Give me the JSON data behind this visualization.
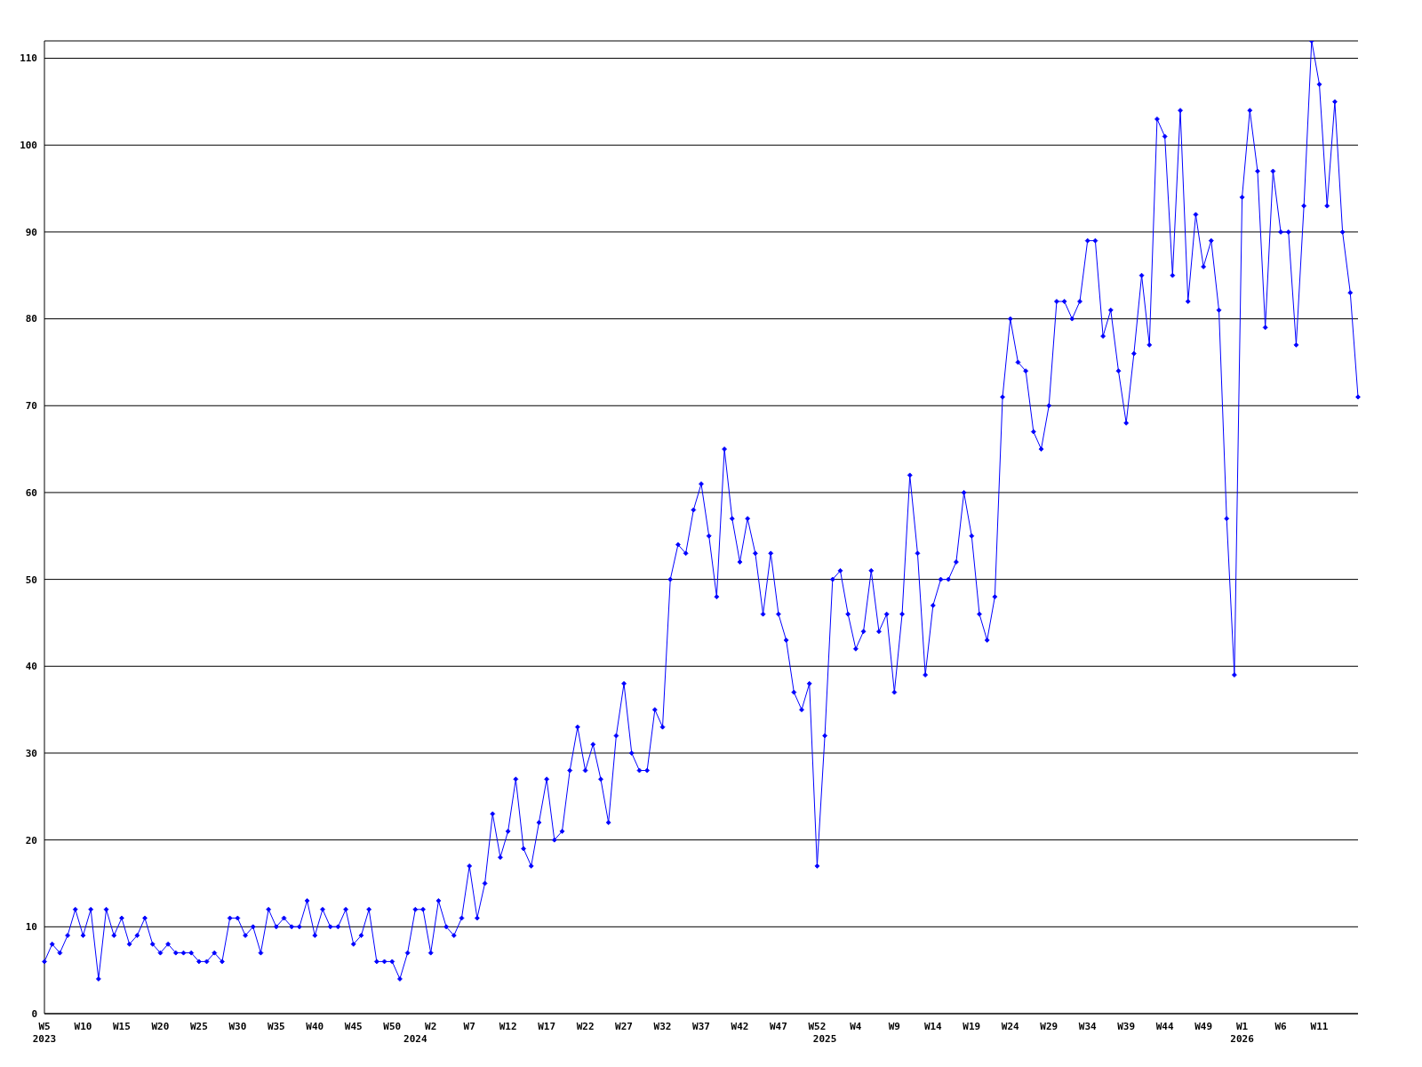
{
  "chart_data": {
    "type": "line",
    "categories": [
      "W5\n2023",
      null,
      null,
      null,
      null,
      "W10",
      null,
      null,
      null,
      null,
      "W15",
      null,
      null,
      null,
      null,
      "W20",
      null,
      null,
      null,
      null,
      "W25",
      null,
      null,
      null,
      null,
      "W30",
      null,
      null,
      null,
      null,
      "W35",
      null,
      null,
      null,
      null,
      "W40",
      null,
      null,
      null,
      null,
      "W45",
      null,
      null,
      null,
      null,
      "W50",
      null,
      null,
      "\n2024",
      null,
      "W2",
      null,
      null,
      null,
      null,
      "W7",
      null,
      null,
      null,
      null,
      "W12",
      null,
      null,
      null,
      null,
      "W17",
      null,
      null,
      null,
      null,
      "W22",
      null,
      null,
      null,
      null,
      "W27",
      null,
      null,
      null,
      null,
      "W32",
      null,
      null,
      null,
      null,
      "W37",
      null,
      null,
      null,
      null,
      "W42",
      null,
      null,
      null,
      null,
      "W47",
      null,
      null,
      null,
      null,
      "W52",
      "\n2025",
      null,
      null,
      null,
      "W4",
      null,
      null,
      null,
      null,
      "W9",
      null,
      null,
      null,
      null,
      "W14",
      null,
      null,
      null,
      null,
      "W19",
      null,
      null,
      null,
      null,
      "W24",
      null,
      null,
      null,
      null,
      "W29",
      null,
      null,
      null,
      null,
      "W34",
      null,
      null,
      null,
      null,
      "W39",
      null,
      null,
      null,
      null,
      "W44",
      null,
      null,
      null,
      null,
      "W49",
      null,
      null,
      null,
      null,
      "W1\n2026",
      null,
      null,
      null,
      null,
      "W6",
      null,
      null,
      null,
      null,
      "W11",
      null,
      null,
      null,
      null,
      null
    ],
    "series": [
      {
        "color": "#0000ff",
        "values": [
          6,
          8,
          7,
          9,
          12,
          9,
          12,
          4,
          12,
          9,
          11,
          8,
          9,
          11,
          8,
          7,
          8,
          7,
          7,
          7,
          6,
          6,
          7,
          6,
          11,
          11,
          9,
          10,
          7,
          12,
          10,
          11,
          10,
          10,
          13,
          9,
          12,
          10,
          10,
          12,
          8,
          9,
          12,
          6,
          6,
          6,
          4,
          7,
          12,
          12,
          7,
          13,
          10,
          9,
          11,
          17,
          11,
          15,
          23,
          18,
          21,
          27,
          19,
          17,
          22,
          27,
          20,
          21,
          28,
          33,
          28,
          31,
          27,
          22,
          32,
          38,
          30,
          28,
          28,
          35,
          33,
          50,
          54,
          53,
          58,
          61,
          55,
          48,
          65,
          57,
          52,
          57,
          53,
          46,
          53,
          46,
          43,
          37,
          35,
          38,
          17,
          32,
          50,
          51,
          46,
          42,
          44,
          51,
          44,
          46,
          37,
          46,
          62,
          53,
          39,
          47,
          50,
          50,
          52,
          60,
          55,
          46,
          43,
          48,
          71,
          80,
          75,
          74,
          67,
          65,
          70,
          82,
          82,
          80,
          82,
          89,
          89,
          78,
          81,
          74,
          68,
          76,
          85,
          77,
          103,
          101,
          85,
          104,
          82,
          92,
          86,
          89,
          81,
          57,
          39,
          94,
          104,
          97,
          79,
          97,
          90,
          90,
          77,
          93,
          112,
          107,
          93,
          105,
          90,
          83,
          71
        ]
      }
    ],
    "ylim": [
      0,
      112
    ],
    "yticks": [
      0,
      10,
      20,
      30,
      40,
      50,
      60,
      70,
      80,
      90,
      100,
      110
    ],
    "grid": "y",
    "marker": "diamond",
    "line_style": "solid"
  }
}
